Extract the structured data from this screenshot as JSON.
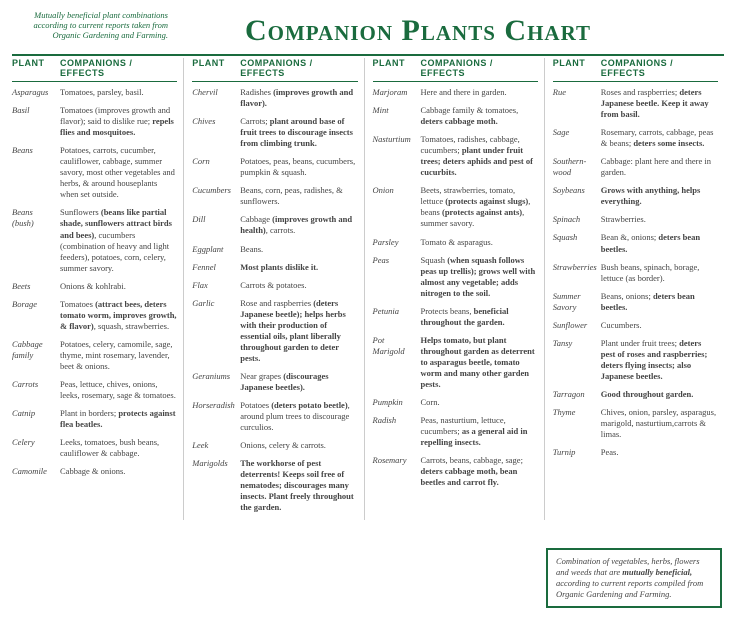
{
  "top_note": "Mutually beneficial plant combinations according to current reports taken from Organic Gardening and Farming.",
  "title": "Companion Plants Chart",
  "header_plant": "PLANT",
  "header_comp": "COMPANIONS / EFFECTS",
  "footnote": "Combination of vegetables, herbs, flowers and weeds that are <b>mutually beneficial,</b> according to current reports compiled from Organic Gardening and Farming.",
  "columns": [
    [
      {
        "plant": "Asparagus",
        "effect": "Tomatoes, parsley, basil."
      },
      {
        "plant": "Basil",
        "effect": "Tomatoes (improves growth and flavor); said to dislike rue; <b>repels flies and mosquitoes.</b>"
      },
      {
        "plant": "Beans",
        "effect": "Potatoes, carrots, cucumber, cauliflower, cabbage, summer savory, most other vegetables and herbs, & around houseplants when set outside."
      },
      {
        "plant": "Beans (bush)",
        "effect": "Sunflowers <b>(beans like partial shade, sunflowers attract birds and bees)</b>, cucumbers (combination of heavy and light feeders), potatoes, corn, celery, summer savory."
      },
      {
        "plant": "Beets",
        "effect": "Onions & kohlrabi."
      },
      {
        "plant": "Borage",
        "effect": "Tomatoes <b>(attract bees, deters tomato worm, improves growth, & flavor)</b>, squash, strawberries."
      },
      {
        "plant": "Cabbage family",
        "effect": "Potatoes, celery, camomile, sage, thyme, mint rosemary, lavender, beet & onions."
      },
      {
        "plant": "Carrots",
        "effect": "Peas, lettuce, chives, onions, leeks, rosemary, sage & tomatoes."
      },
      {
        "plant": "Catnip",
        "effect": "Plant in borders; <b>protects against flea beatles.</b>"
      },
      {
        "plant": "Celery",
        "effect": "Leeks, tomatoes, bush beans, cauliflower & cabbage."
      },
      {
        "plant": "Camomile",
        "effect": "Cabbage & onions."
      }
    ],
    [
      {
        "plant": "Chervil",
        "effect": "Radishes <b>(improves growth and flavor).</b>"
      },
      {
        "plant": "Chives",
        "effect": "Carrots; <b>plant around base of fruit trees to discourage insects from climbing trunk.</b>"
      },
      {
        "plant": "Corn",
        "effect": "Potatoes, peas, beans, cucumbers, pumpkin & squash."
      },
      {
        "plant": "Cucumbers",
        "effect": "Beans, corn, peas, radishes, & sunflowers."
      },
      {
        "plant": "Dill",
        "effect": "Cabbage <b>(improves growth and health)</b>, carrots."
      },
      {
        "plant": "Eggplant",
        "effect": "Beans."
      },
      {
        "plant": "Fennel",
        "effect": "<b>Most plants dislike it.</b>"
      },
      {
        "plant": "Flax",
        "effect": "Carrots & potatoes."
      },
      {
        "plant": "Garlic",
        "effect": "Rose and raspberries <b>(deters Japanese beetle); helps herbs with their production of essential oils, plant liberally throughout garden to deter pests.</b>"
      },
      {
        "plant": "Geraniums",
        "effect": "Near grapes <b>(discourages Japanese beetles).</b>"
      },
      {
        "plant": "Horseradish",
        "effect": "Potatoes <b>(deters potato beetle)</b>, around plum trees to discourage curculios."
      },
      {
        "plant": "Leek",
        "effect": "Onions, celery & carrots."
      },
      {
        "plant": "Marigolds",
        "effect": "<b>The workhorse of pest deterrents! Keeps soil free of nematodes; discourages many insects. Plant freely throughout the garden.</b>"
      }
    ],
    [
      {
        "plant": "Marjoram",
        "effect": "Here and there in garden."
      },
      {
        "plant": "Mint",
        "effect": "Cabbage family & tomatoes, <b>deters cabbage moth.</b>"
      },
      {
        "plant": "Nasturtium",
        "effect": "Tomatoes, radishes, cabbage, cucumbers; <b>plant under fruit trees; deters aphids and pest of cucurbits.</b>"
      },
      {
        "plant": "Onion",
        "effect": "Beets, strawberries, tomato, lettuce <b>(protects against slugs)</b>, beans <b>(protects against ants)</b>, summer savory."
      },
      {
        "plant": "Parsley",
        "effect": "Tomato & asparagus."
      },
      {
        "plant": "Peas",
        "effect": "Squash <b>(when squash follows peas up trellis); grows well with almost any vegetable; adds nitrogen to the soil.</b>"
      },
      {
        "plant": "Petunia",
        "effect": "Protects beans, <b>beneficial throughout the garden.</b>"
      },
      {
        "plant": "Pot Marigold",
        "effect": "<b>Helps tomato, but plant throughout garden as deterrent to asparagus beetle, tomato worm and many other garden pests.</b>"
      },
      {
        "plant": "Pumpkin",
        "effect": "Corn."
      },
      {
        "plant": "Radish",
        "effect": "Peas, nasturtium, lettuce, cucumbers; <b>as a general aid in repelling insects.</b>"
      },
      {
        "plant": "Rosemary",
        "effect": "Carrots, beans, cabbage, sage; <b>deters cabbage moth, bean beetles and carrot fly.</b>"
      }
    ],
    [
      {
        "plant": "Rue",
        "effect": "Roses and raspberries; <b>deters Japanese beetle. Keep it away from basil.</b>"
      },
      {
        "plant": "Sage",
        "effect": "Rosemary, carrots, cabbage, peas & beans; <b>deters some insects.</b>"
      },
      {
        "plant": "Southern-wood",
        "effect": "Cabbage: plant here and there in garden."
      },
      {
        "plant": "Soybeans",
        "effect": "<b>Grows with anything, helps everything.</b>"
      },
      {
        "plant": "Spinach",
        "effect": "Strawberries."
      },
      {
        "plant": "Squash",
        "effect": "Bean &, onions; <b>deters bean beetles.</b>"
      },
      {
        "plant": "Strawberries",
        "effect": "Bush beans, spinach, borage, lettuce (as border)."
      },
      {
        "plant": "Summer Savory",
        "effect": "Beans, onions; <b>deters bean beetles.</b>"
      },
      {
        "plant": "Sunflower",
        "effect": "Cucumbers."
      },
      {
        "plant": "Tansy",
        "effect": "Plant under fruit trees; <b>deters pest of roses and raspberries; deters flying insects; also Japanese beetles.</b>"
      },
      {
        "plant": "Tarragon",
        "effect": "<b>Good throughout garden.</b>"
      },
      {
        "plant": "Thyme",
        "effect": "Chives, onion, parsley, asparagus, marigold, nasturtium,carrots & limas."
      },
      {
        "plant": "Turnip",
        "effect": "Peas."
      }
    ]
  ],
  "colors": {
    "brand": "#1a6b3e",
    "text": "#444444",
    "rule": "#cccccc"
  }
}
